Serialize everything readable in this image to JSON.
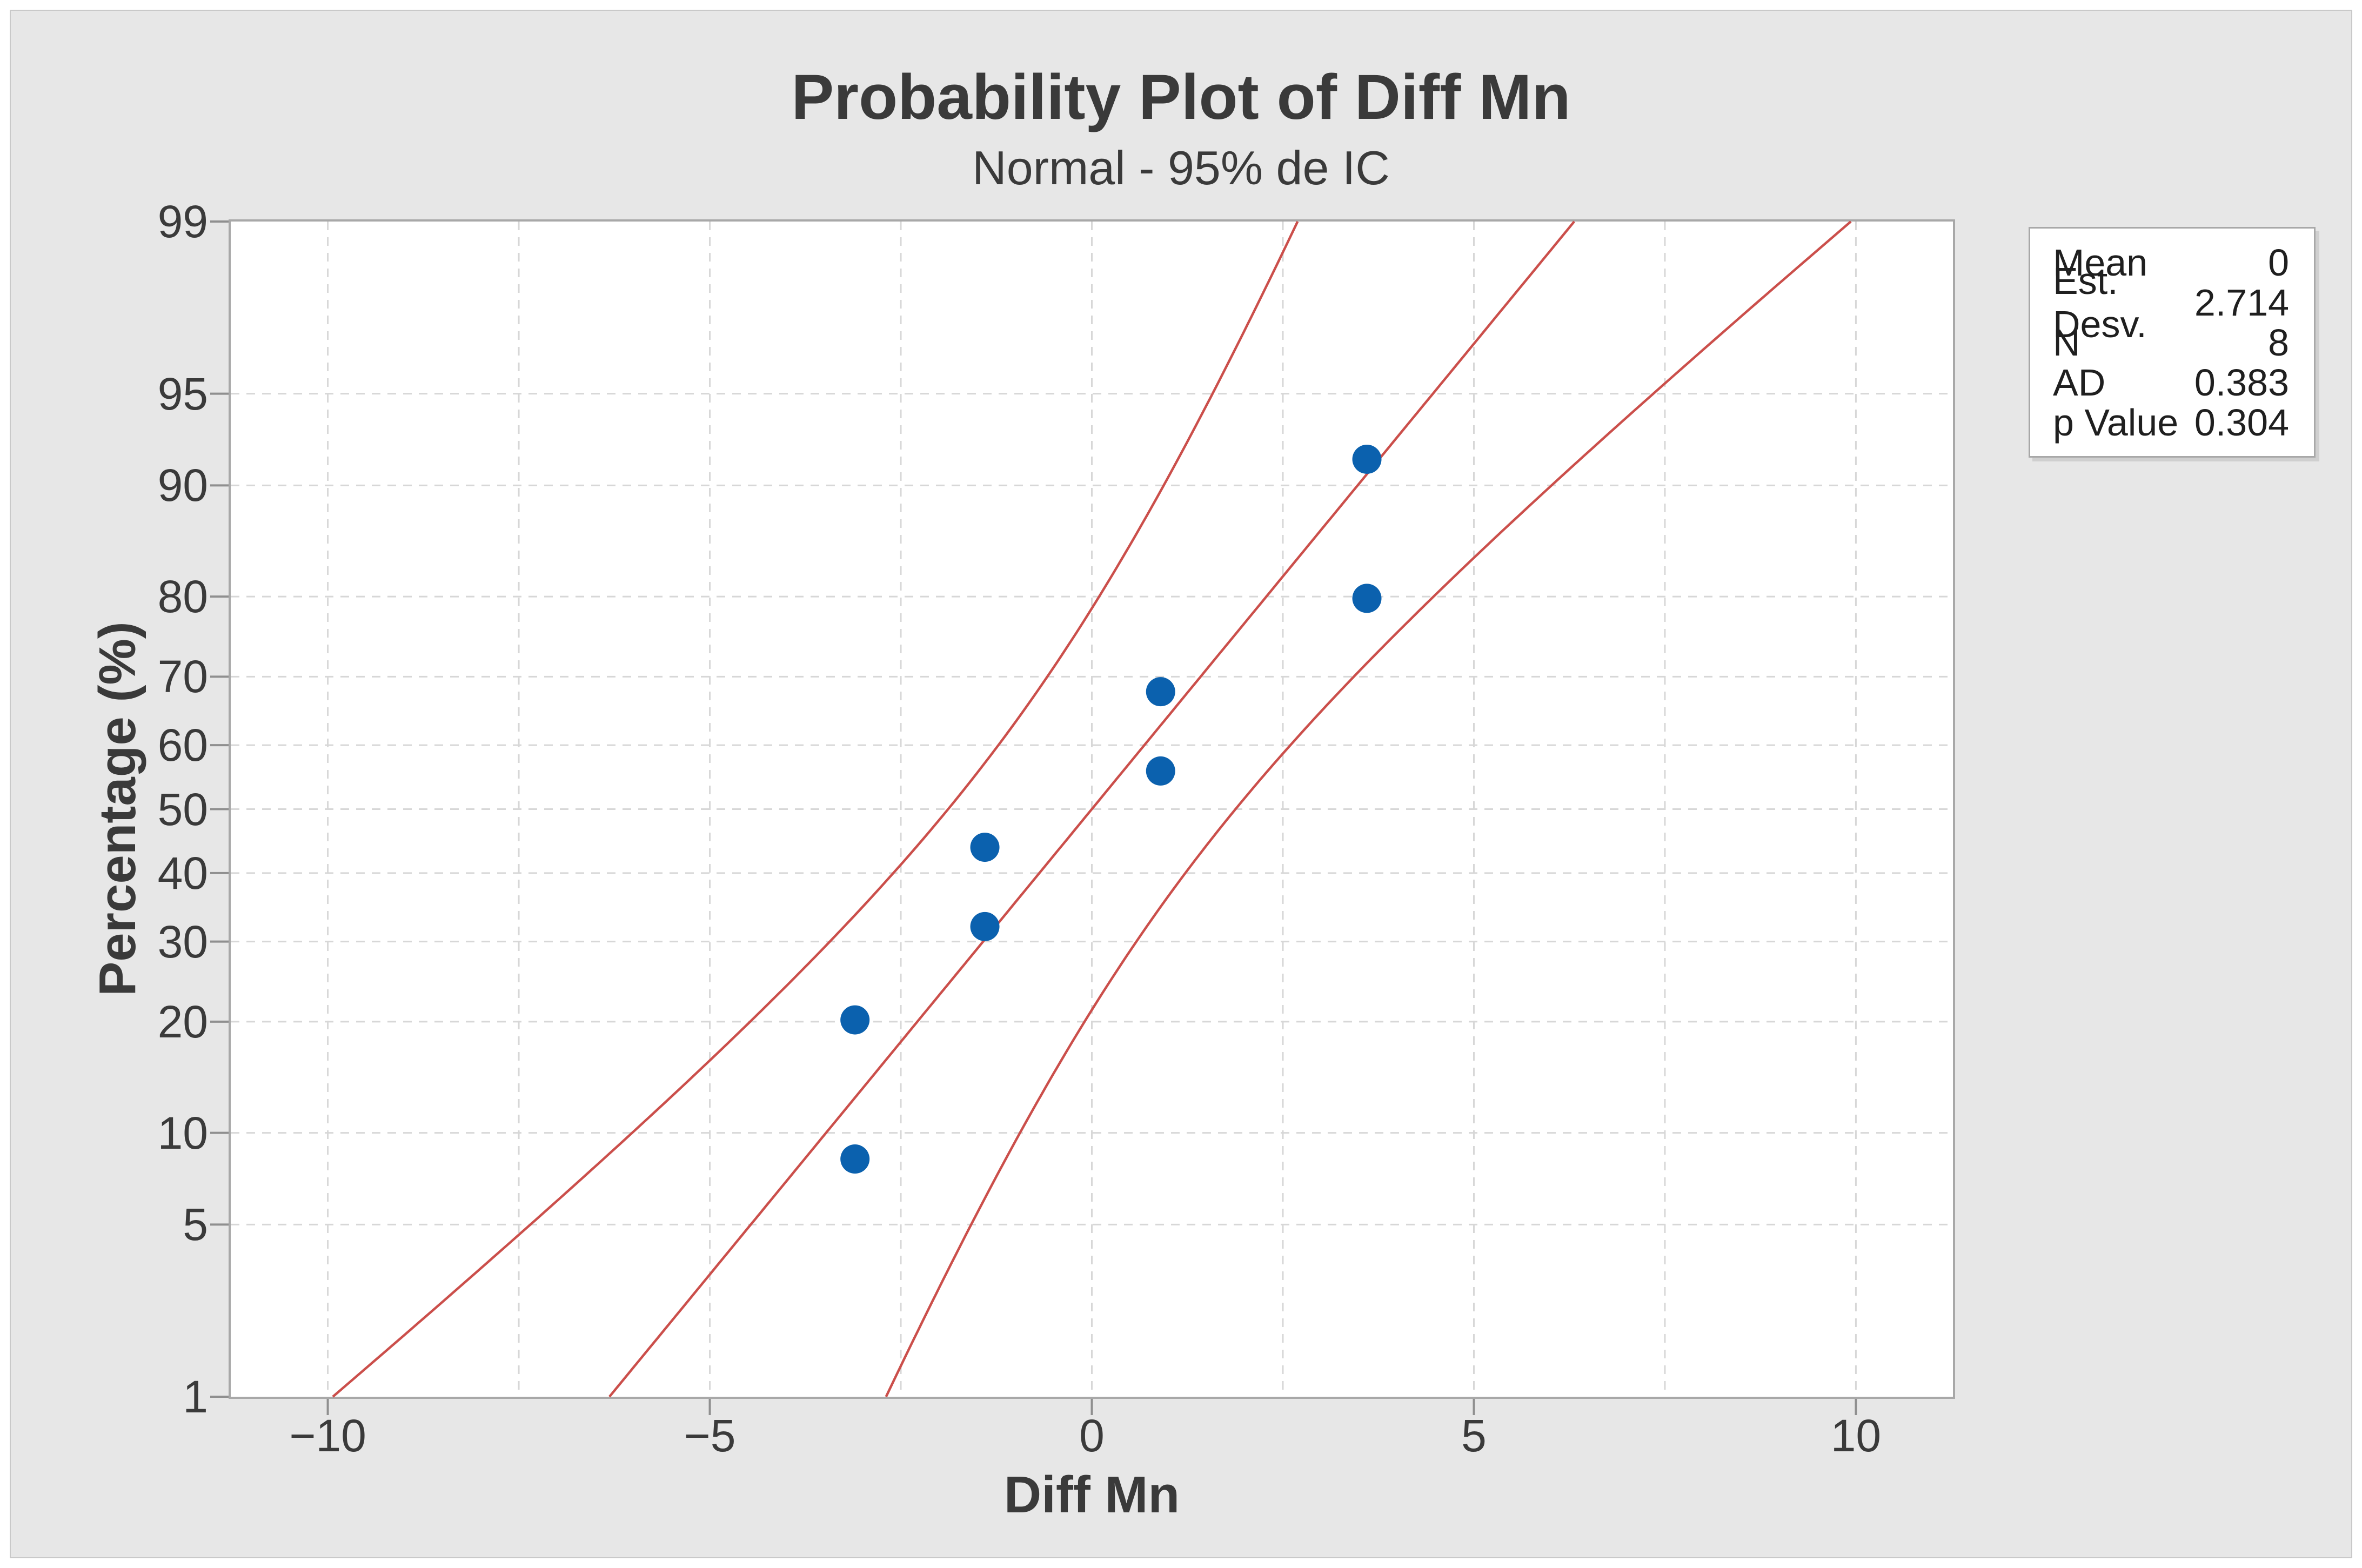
{
  "chart_data": {
    "type": "scatter",
    "title": "Probability Plot of Diff Mn",
    "subtitle": "Normal - 95% de IC",
    "xlabel": "Diff Mn",
    "ylabel": "Percentage (%)",
    "y_scale": "normal-probability",
    "grid": "dashed-major",
    "legend_position": "outside-top-right",
    "xlim": [
      -11.27,
      11.27
    ],
    "ylim_percent": [
      1,
      99
    ],
    "x_ticks": [
      -10,
      -5,
      0,
      5,
      10
    ],
    "x_tick_labels": [
      "−10",
      "−5",
      "0",
      "5",
      "10"
    ],
    "x_gridlines": [
      -10,
      -7.5,
      -5,
      -2.5,
      0,
      2.5,
      5,
      7.5,
      10
    ],
    "y_ticks_percent": [
      1,
      5,
      10,
      20,
      30,
      40,
      50,
      60,
      70,
      80,
      90,
      95,
      99
    ],
    "y_tick_labels": [
      "1",
      "5",
      "10",
      "20",
      "30",
      "40",
      "50",
      "60",
      "70",
      "80",
      "90",
      "95",
      "99"
    ],
    "y_gridlines_percent": [
      5,
      10,
      20,
      30,
      40,
      50,
      60,
      70,
      80,
      90,
      95
    ],
    "points": [
      {
        "x": -3.1,
        "percent": 8.3
      },
      {
        "x": -3.1,
        "percent": 20.2
      },
      {
        "x": -1.4,
        "percent": 32.1
      },
      {
        "x": -1.4,
        "percent": 44.0
      },
      {
        "x": 0.9,
        "percent": 56.0
      },
      {
        "x": 0.9,
        "percent": 67.9
      },
      {
        "x": 3.6,
        "percent": 79.8
      },
      {
        "x": 3.6,
        "percent": 91.7
      }
    ],
    "fit": {
      "mean": 0,
      "sd": 2.714,
      "n": 8
    },
    "ci_level_percent": 95,
    "colors": {
      "background": "#e7e7e7",
      "plot_background": "#ffffff",
      "points": "#0b61ae",
      "lines": "#cb4f4b",
      "grid": "#d7d7d7",
      "border": "#a8a8a8",
      "tick": "#8f8f8f",
      "text": "#3a3a3a"
    }
  },
  "legend": {
    "rows": [
      {
        "label": "Mean",
        "value": "0"
      },
      {
        "label": "Est. Desv.",
        "value": "2.714"
      },
      {
        "label": "N",
        "value": "8"
      },
      {
        "label": "AD",
        "value": "0.383"
      },
      {
        "label": "p Value",
        "value": "0.304"
      }
    ]
  }
}
